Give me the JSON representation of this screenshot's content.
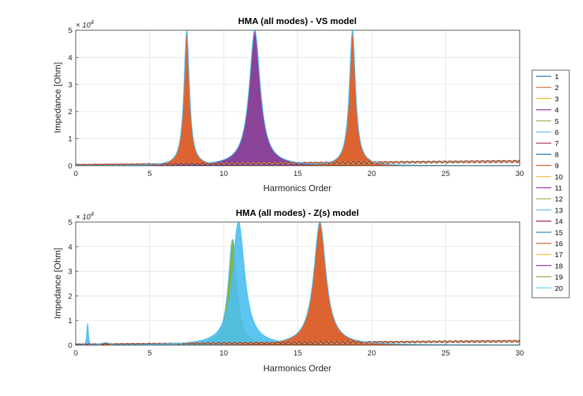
{
  "chart_data": [
    {
      "type": "line",
      "title": "HMA (all modes) - VS model",
      "xlabel": "Harmonics Order",
      "ylabel": "Impedance [Ohm]",
      "xlim": [
        0,
        30
      ],
      "ylim": [
        0,
        50000
      ],
      "xticks": [
        "0",
        "5",
        "10",
        "15",
        "20",
        "25",
        "30"
      ],
      "yticks": [
        "0",
        "1",
        "2",
        "3",
        "4",
        "5"
      ],
      "y_exponent_base": "× 10",
      "y_exponent_power": "4",
      "grid": true,
      "peaks": [
        {
          "mode": "9",
          "x": 7.5,
          "y": 50000,
          "gamma": 0.22
        },
        {
          "mode": "11",
          "x": 12.1,
          "y": 50000,
          "gamma": 0.45
        },
        {
          "mode": "9",
          "x": 18.7,
          "y": 50000,
          "gamma": 0.25
        }
      ],
      "baseline_max": 2000
    },
    {
      "type": "line",
      "title": "HMA (all modes) - Z(s) model",
      "xlabel": "Harmonics Order",
      "ylabel": "Impedance [Ohm]",
      "xlim": [
        0,
        30
      ],
      "ylim": [
        0,
        50000
      ],
      "xticks": [
        "0",
        "5",
        "10",
        "15",
        "20",
        "25",
        "30"
      ],
      "yticks": [
        "0",
        "1",
        "2",
        "3",
        "4",
        "5"
      ],
      "y_exponent_base": "× 10",
      "y_exponent_power": "4",
      "grid": true,
      "peaks": [
        {
          "mode": "6",
          "x": 0.8,
          "y": 9500,
          "gamma": 0.05
        },
        {
          "mode": "9",
          "x": 2.0,
          "y": 1000,
          "gamma": 0.4
        },
        {
          "mode": "19",
          "x": 10.6,
          "y": 43000,
          "gamma": 0.35
        },
        {
          "mode": "13",
          "x": 11.0,
          "y": 50000,
          "gamma": 0.5
        },
        {
          "mode": "9",
          "x": 16.5,
          "y": 50000,
          "gamma": 0.5
        }
      ],
      "baseline_max": 2000
    }
  ],
  "legend": {
    "placement": "right",
    "entries": [
      "1",
      "2",
      "3",
      "4",
      "5",
      "6",
      "7",
      "8",
      "9",
      "10",
      "11",
      "12",
      "13",
      "14",
      "15",
      "16",
      "17",
      "18",
      "19",
      "20"
    ],
    "colors": [
      "#0072BD",
      "#D95319",
      "#EDB120",
      "#7E2F8E",
      "#77AC30",
      "#4DBEEE",
      "#A2142F",
      "#0072BD",
      "#D95319",
      "#EDB120",
      "#7E2F8E",
      "#77AC30",
      "#4DBEEE",
      "#A2142F",
      "#0072BD",
      "#D95319",
      "#EDB120",
      "#7E2F8E",
      "#77AC30",
      "#4DBEEE"
    ]
  }
}
